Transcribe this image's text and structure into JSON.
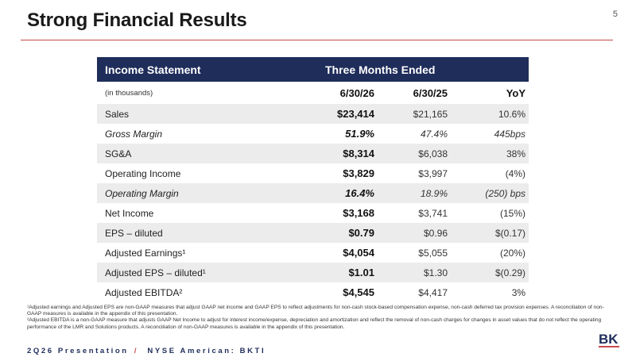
{
  "slide": {
    "title": "Strong Financial Results",
    "page_number": "5"
  },
  "table": {
    "header_label": "Income Statement",
    "header_period": "Three Months Ended",
    "units": "(in thousands)",
    "columns": [
      "6/30/26",
      "6/30/25",
      "YoY"
    ],
    "rows": [
      {
        "label": "Sales",
        "current": "$23,414",
        "prior": "$21,165",
        "yoy": "10.6%"
      },
      {
        "label": "Gross Margin",
        "current": "51.9%",
        "prior": "47.4%",
        "yoy": "445bps"
      },
      {
        "label": "SG&A",
        "current": "$8,314",
        "prior": "$6,038",
        "yoy": "38%"
      },
      {
        "label": "Operating Income",
        "current": "$3,829",
        "prior": "$3,997",
        "yoy": "(4%)"
      },
      {
        "label": "Operating Margin",
        "current": "16.4%",
        "prior": "18.9%",
        "yoy": "(250) bps"
      },
      {
        "label": "Net Income",
        "current": "$3,168",
        "prior": "$3,741",
        "yoy": "(15%)"
      },
      {
        "label": "EPS – diluted",
        "current": "$0.79",
        "prior": "$0.96",
        "yoy": "$(0.17)"
      },
      {
        "label": "Adjusted Earnings¹",
        "current": "$4,054",
        "prior": "$5,055",
        "yoy": "(20%)"
      },
      {
        "label": "Adjusted EPS – diluted¹",
        "current": "$1.01",
        "prior": "$1.30",
        "yoy": "$(0.29)"
      },
      {
        "label": "Adjusted EBITDA²",
        "current": "$4,545",
        "prior": "$4,417",
        "yoy": "3%"
      }
    ]
  },
  "footnotes": {
    "note1": "¹Adjusted earnings and Adjusted EPS are non-GAAP measures that adjust GAAP net income and GAAP EPS to reflect adjustments for non-cash stock-based compensation expense, non-cash deferred tax provision expenses.  A reconciliation of non-GAAP measures is available in the appendix of this presentation.",
    "note2": "²Adjusted EBITDA is a non-GAAP measure that adjusts GAAP Net Income to adjust for interest income/expense, depreciation and amortization and reflect  the removal of non-cash charges for changes in asset values that do not reflect the operating performance of the LMR and Solutions products. A reconciliation of non-GAAP measures is available in the appendix of this presentation."
  },
  "footer": {
    "left": "2Q26 Presentation",
    "separator": "/",
    "right": "NYSE American: BKTI"
  },
  "logo": {
    "text": "BK",
    "color_primary": "#1f2d5a",
    "color_accent": "#c84a4a"
  }
}
